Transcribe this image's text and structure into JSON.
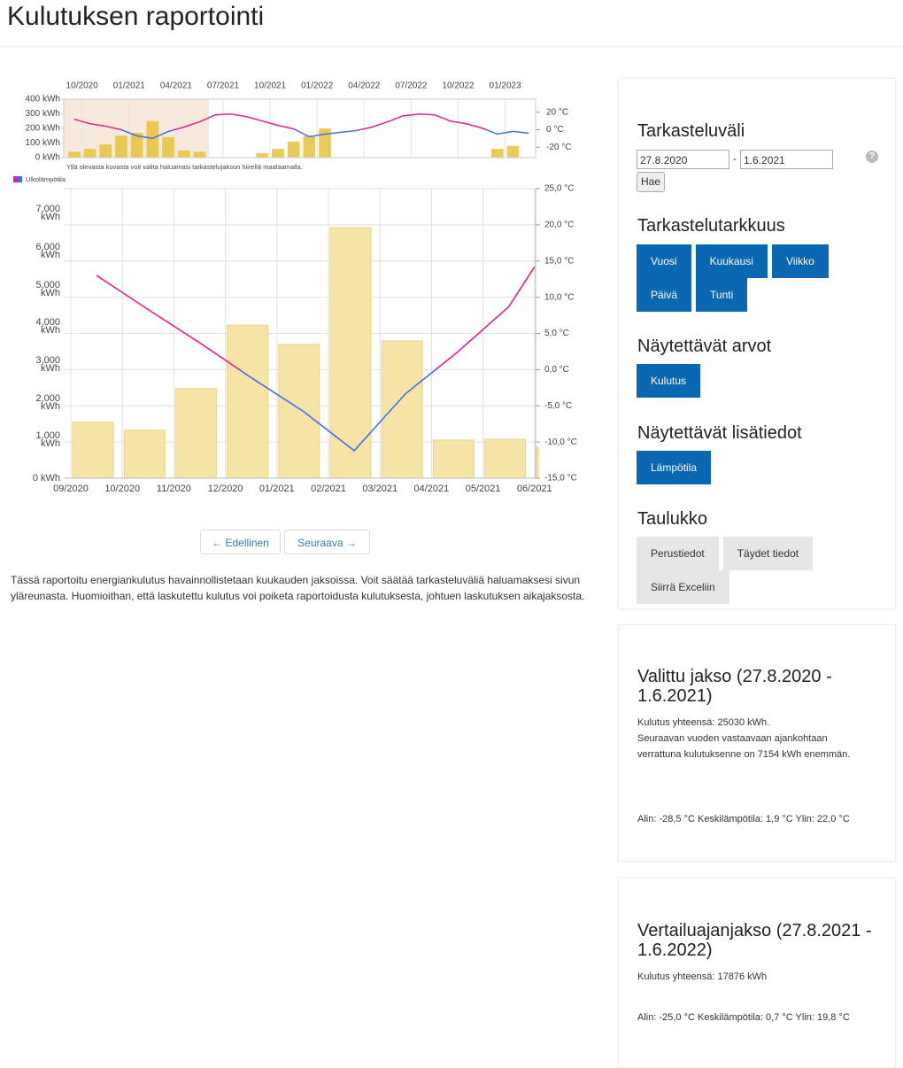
{
  "header": {
    "title": "Kulutuksen raportointi"
  },
  "chart_data": [
    {
      "type": "bar",
      "note": "Yllä olevasta kuvasta voit valita haluamasi tarkastelujakson hiirellä maalaamalla.",
      "categories": [
        null,
        "10/2020",
        null,
        null,
        "01/2021",
        null,
        null,
        "04/2021",
        null,
        null,
        "07/2021",
        null,
        null,
        "10/2021",
        null,
        null,
        "01/2022",
        null,
        null,
        "04/2022",
        null,
        null,
        "07/2022",
        null,
        null,
        "10/2022",
        null,
        null,
        "01/2023",
        null
      ],
      "series": [
        {
          "color": "#e8c23a",
          "values": [
            40,
            60,
            90,
            150,
            170,
            250,
            140,
            50,
            40,
            null,
            null,
            null,
            30,
            60,
            110,
            150,
            200,
            null,
            null,
            null,
            null,
            null,
            null,
            null,
            null,
            null,
            null,
            60,
            80,
            null
          ]
        },
        {
          "type": "line",
          "axis": "y2",
          "color": "#ee1c8f",
          "negative_color": "#3d6ff0",
          "values": [
            12,
            7,
            4,
            0,
            -7,
            -10,
            -2,
            3,
            9,
            17,
            18,
            15,
            10,
            5,
            1,
            -8,
            -5,
            -3,
            -1,
            3,
            9,
            16,
            18,
            17,
            10,
            7,
            2,
            -5,
            -2,
            -4
          ]
        }
      ],
      "ylim": [
        0,
        400
      ],
      "yticks": [
        {
          "value": 400,
          "label": "400 kWh"
        },
        {
          "value": 300,
          "label": "300 kWh"
        },
        {
          "value": 200,
          "label": "200 kWh"
        },
        {
          "value": 100,
          "label": "100 kWh"
        },
        {
          "value": 0,
          "label": "0 kWh"
        }
      ],
      "y2lim": [
        -32,
        35
      ],
      "y2ticks": [
        {
          "value": 20,
          "label": "20 °C"
        },
        {
          "value": 0,
          "label": "0 °C"
        },
        {
          "value": -20,
          "label": "-20 °C"
        }
      ]
    },
    {
      "type": "bar",
      "categories": [
        "09/2020",
        "10/2020",
        "11/2020",
        "12/2020",
        "01/2021",
        "02/2021",
        "03/2021",
        "04/2021",
        "05/2021",
        "06/2021"
      ],
      "series": [
        {
          "color": "#f6e3a6",
          "values": [
            1480,
            1270,
            2370,
            4050,
            3540,
            6630,
            3630,
            1010,
            1030,
            820
          ]
        },
        {
          "name": "Ulkolämpötila",
          "type": "line",
          "axis": "y2",
          "color": "#ee1c8f",
          "negative_color": "#3d6ff0",
          "values": [
            13.0,
            8.3,
            3.7,
            -1.1,
            -5.7,
            -11.2,
            -3.3,
            2.4,
            8.7,
            14.2
          ]
        }
      ],
      "ylim": [
        0,
        7660
      ],
      "yticks": [
        {
          "value": 0,
          "label": "0 kWh"
        },
        {
          "value": 1000,
          "label": "1,000\nkWh"
        },
        {
          "value": 2000,
          "label": "2,000\nkWh"
        },
        {
          "value": 3000,
          "label": "3,000\nkWh"
        },
        {
          "value": 4000,
          "label": "4,000\nkWh"
        },
        {
          "value": 5000,
          "label": "5,000\nkWh"
        },
        {
          "value": 6000,
          "label": "6,000\nkWh"
        },
        {
          "value": 7000,
          "label": "7,000\nkWh"
        }
      ],
      "y2lim": [
        -15,
        25
      ],
      "y2ticks": [
        {
          "value": 25,
          "label": "25,0 °C"
        },
        {
          "value": 20,
          "label": "20,0 °C"
        },
        {
          "value": 15,
          "label": "15,0 °C"
        },
        {
          "value": 10,
          "label": "10,0 °C"
        },
        {
          "value": 5,
          "label": "5,0 °C"
        },
        {
          "value": 0,
          "label": "0,0 °C"
        },
        {
          "value": -5,
          "label": "-5,0 °C"
        },
        {
          "value": -10,
          "label": "-10,0 °C"
        },
        {
          "value": -15,
          "label": "-15,0 °C"
        }
      ],
      "grid": true
    }
  ],
  "pager": {
    "previous": "← Edellinen",
    "next": "Seuraava →"
  },
  "description": "Tässä raportoitu energiankulutus havainnollistetaan kuukauden jaksoissa. Voit säätää tarkasteluväliä haluamaksesi sivun yläreunasta. Huomioithan, että laskutettu kulutus voi poiketa raportoidusta kulutuksesta, johtuen laskutuksen aikajaksosta.",
  "sidebar": {
    "range_title": "Tarkasteluväli",
    "start": "27.8.2020",
    "separator": "-",
    "end": "1.6.2021",
    "help": "?",
    "fetch": "Hae",
    "resolution_title": "Tarkastelutarkkuus",
    "resolutions": [
      "Vuosi",
      "Kuukausi",
      "Viikko",
      "Päivä",
      "Tunti"
    ],
    "values_title": "Näytettävät arvot",
    "values": [
      "Kulutus"
    ],
    "extras_title": "Näytettävät lisätiedot",
    "extras": [
      "Lämpötila"
    ],
    "table_title": "Taulukko",
    "table_buttons": [
      "Perustiedot",
      "Täydet tiedot",
      "Siirrä Exceliin"
    ]
  },
  "panels": [
    {
      "title": "Valittu jakso (27.8.2020 - 1.6.2021)",
      "total": "Kulutus yhteensä: 25030 kWh.",
      "comparison": "Seuraavan vuoden vastaavaan ajankohtaan verrattuna kulutuksenne on 7154 kWh enemmän.",
      "temperatures": "Alin: -28,5 °C Keskilämpötila: 1,9 °C Ylin: 22,0 °C"
    },
    {
      "title": "Vertailuajanjakso (27.8.2021 - 1.6.2022)",
      "total": "Kulutus yhteensä: 17876 kWh",
      "temperatures": "Alin: -25,0 °C Keskilämpötila: 0,7 °C Ylin: 19,8 °C"
    }
  ]
}
